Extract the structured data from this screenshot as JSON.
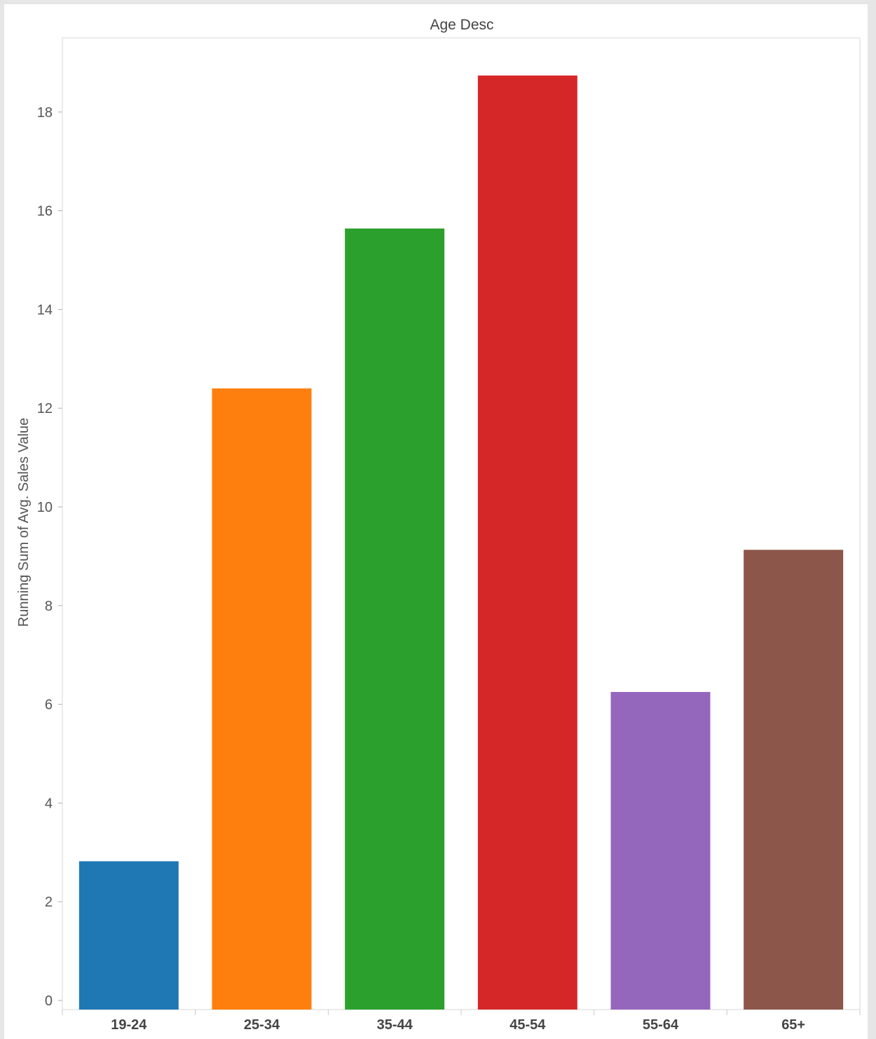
{
  "chart_data": {
    "type": "bar",
    "title": "Age Desc",
    "xlabel": "",
    "ylabel": "Running Sum of Avg. Sales Value",
    "categories": [
      "19-24",
      "25-34",
      "35-44",
      "45-54",
      "55-64",
      "65+"
    ],
    "values": [
      2.82,
      12.4,
      15.64,
      18.74,
      6.25,
      9.13
    ],
    "colors": [
      "#1f77b4",
      "#ff7f0e",
      "#2ca02c",
      "#d62728",
      "#9467bd",
      "#8c564b"
    ],
    "ylim": [
      0,
      19.2
    ],
    "yticks": [
      0,
      2,
      4,
      6,
      8,
      10,
      12,
      14,
      16,
      18
    ],
    "ytick_labels": [
      "0",
      "2",
      "4",
      "6",
      "8",
      "10",
      "12",
      "14",
      "16",
      "18"
    ],
    "grid": false,
    "legend": "none"
  }
}
